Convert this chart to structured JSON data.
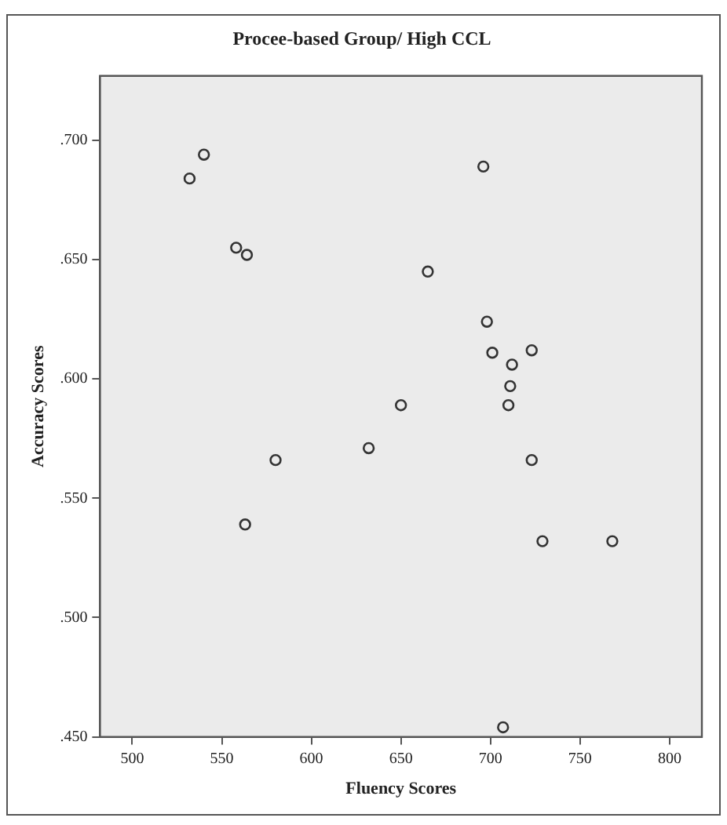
{
  "chart_data": {
    "type": "scatter",
    "title": "Procee-based Group/ High CCL",
    "xlabel": "Fluency Scores",
    "ylabel": "Accuracy Scores",
    "x": [
      532,
      540,
      558,
      564,
      563,
      580,
      632,
      650,
      665,
      696,
      698,
      701,
      707,
      710,
      711,
      712,
      723,
      723,
      729,
      768
    ],
    "series": [
      {
        "color": "#333333",
        "values": [
          0.684,
          0.694,
          0.655,
          0.652,
          0.539,
          0.566,
          0.571,
          0.589,
          0.645,
          0.689,
          0.624,
          0.611,
          0.454,
          0.589,
          0.597,
          0.606,
          0.612,
          0.566,
          0.532,
          0.532
        ]
      }
    ],
    "xlim": [
      482,
      818
    ],
    "xticks": [
      500,
      550,
      600,
      650,
      700,
      750,
      800
    ],
    "ylim": [
      0.45,
      0.727
    ],
    "yticks": [
      {
        "value": 0.45,
        "label": ".450"
      },
      {
        "value": 0.5,
        "label": ".500"
      },
      {
        "value": 0.55,
        "label": ".550"
      },
      {
        "value": 0.6,
        "label": ".600"
      },
      {
        "value": 0.65,
        "label": ".650"
      },
      {
        "value": 0.7,
        "label": ".700"
      }
    ],
    "grid": false,
    "legend": false,
    "marker": "circle"
  }
}
